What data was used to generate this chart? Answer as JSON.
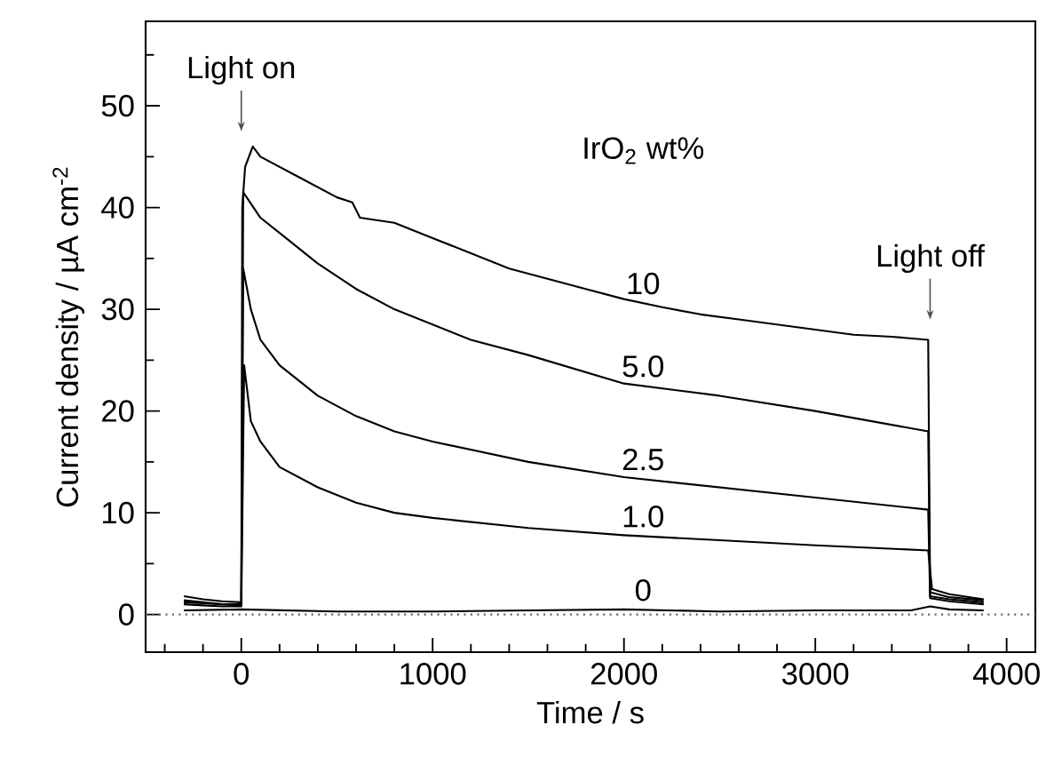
{
  "chart_data": {
    "type": "line",
    "xlabel": "Time / s",
    "ylabel": "Current density / µA cm$^{-2}$",
    "legend_title": "IrO$_{2}$ wt%",
    "marker": "none",
    "line_style": "solid",
    "xlim": [
      -500,
      4150
    ],
    "ylim": [
      -3.7,
      58.3
    ],
    "xticks": [
      {
        "value": -400,
        "label": null
      },
      {
        "value": -200,
        "label": null
      },
      0,
      {
        "value": 200,
        "label": null
      },
      {
        "value": 400,
        "label": null
      },
      {
        "value": 600,
        "label": null
      },
      {
        "value": 800,
        "label": null
      },
      1000,
      {
        "value": 1200,
        "label": null
      },
      {
        "value": 1400,
        "label": null
      },
      {
        "value": 1600,
        "label": null
      },
      {
        "value": 1800,
        "label": null
      },
      2000,
      {
        "value": 2200,
        "label": null
      },
      {
        "value": 2400,
        "label": null
      },
      {
        "value": 2600,
        "label": null
      },
      {
        "value": 2800,
        "label": null
      },
      3000,
      {
        "value": 3200,
        "label": null
      },
      {
        "value": 3400,
        "label": null
      },
      {
        "value": 3600,
        "label": null
      },
      {
        "value": 3800,
        "label": null
      },
      4000
    ],
    "yticks": [
      0,
      {
        "value": 5,
        "label": null
      },
      10,
      {
        "value": 15,
        "label": null
      },
      20,
      {
        "value": 25,
        "label": null
      },
      30,
      {
        "value": 35,
        "label": null
      },
      40,
      {
        "value": 45,
        "label": null
      },
      50,
      {
        "value": 55,
        "label": null
      }
    ],
    "series": [
      {
        "name": "10",
        "color": "#000000",
        "x": [
          -300,
          -200,
          -100,
          0,
          5,
          20,
          60,
          100,
          200,
          300,
          500,
          580,
          620,
          800,
          1000,
          1200,
          1400,
          1600,
          1800,
          2000,
          2200,
          2400,
          2600,
          2800,
          3000,
          3200,
          3400,
          3590,
          3600,
          3700,
          3880
        ],
        "values": [
          1.8,
          1.5,
          1.3,
          1.2,
          40,
          44,
          46,
          45,
          44,
          43,
          41,
          40.5,
          39,
          38.5,
          37,
          35.5,
          34,
          33,
          32,
          31,
          30.2,
          29.5,
          29,
          28.5,
          28,
          27.5,
          27.3,
          27,
          2.2,
          1.7,
          1.4
        ]
      },
      {
        "name": "5.0",
        "color": "#000000",
        "x": [
          -300,
          -200,
          -100,
          0,
          10,
          100,
          200,
          400,
          600,
          800,
          1000,
          1200,
          1500,
          2000,
          2500,
          3000,
          3590,
          3600,
          3700,
          3880
        ],
        "values": [
          1.2,
          1.1,
          1,
          1,
          41.5,
          39,
          37.5,
          34.5,
          32,
          30,
          28.5,
          27,
          25.5,
          22.7,
          21.5,
          20,
          18,
          1.8,
          1.5,
          1.2
        ]
      },
      {
        "name": "2.5",
        "color": "#000000",
        "x": [
          -300,
          -200,
          -100,
          0,
          10,
          50,
          100,
          200,
          400,
          600,
          800,
          1000,
          1500,
          2000,
          2500,
          3000,
          3590,
          3600,
          3700,
          3880
        ],
        "values": [
          1.4,
          1.2,
          1,
          0.9,
          34,
          30,
          27,
          24.5,
          21.5,
          19.5,
          18,
          17,
          15,
          13.5,
          12.5,
          11.5,
          10.3,
          1.6,
          1.3,
          1
        ]
      },
      {
        "name": "1.0",
        "color": "#000000",
        "x": [
          -300,
          -200,
          -100,
          0,
          15,
          50,
          100,
          200,
          400,
          600,
          800,
          1000,
          1500,
          2000,
          2500,
          3000,
          3590,
          3610,
          3700,
          3880
        ],
        "values": [
          1,
          0.9,
          0.8,
          0.8,
          24.5,
          19,
          17,
          14.5,
          12.5,
          11,
          10,
          9.5,
          8.5,
          7.8,
          7.3,
          6.8,
          6.3,
          2.5,
          2,
          1.5
        ]
      },
      {
        "name": "0",
        "color": "#000000",
        "x": [
          -300,
          0,
          500,
          1000,
          1500,
          2000,
          2500,
          3000,
          3500,
          3600,
          3700,
          3880
        ],
        "values": [
          0.4,
          0.5,
          0.3,
          0.3,
          0.4,
          0.5,
          0.3,
          0.4,
          0.4,
          0.8,
          0.5,
          0.4
        ]
      }
    ],
    "ref_lines": [
      {
        "axis": "y",
        "value": 0,
        "line_style": "dotted",
        "color": "#666666"
      }
    ],
    "annotations": [
      "Light on",
      "Light off"
    ]
  }
}
